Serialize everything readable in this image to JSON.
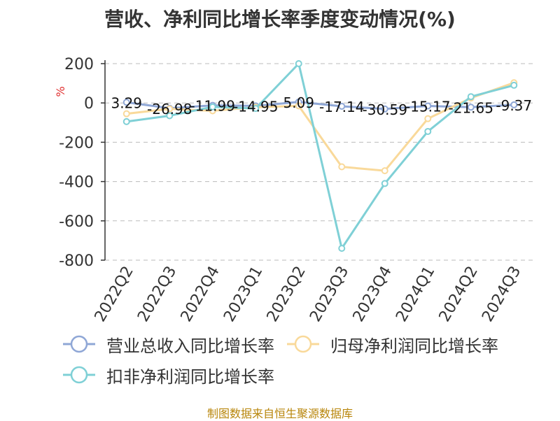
{
  "chart_data": {
    "type": "line",
    "title": "营收、净利同比增长率季度变动情况(%)",
    "ylabel": "%",
    "categories": [
      "2022Q2",
      "2022Q3",
      "2022Q4",
      "2023Q1",
      "2023Q2",
      "2023Q3",
      "2023Q4",
      "2024Q1",
      "2024Q2",
      "2024Q3"
    ],
    "ylim": [
      -800,
      200
    ],
    "yticks": [
      200,
      0,
      -200,
      -400,
      -600,
      -800
    ],
    "grid": true,
    "legend_position": "bottom",
    "series": [
      {
        "name": "营业总收入同比增长率",
        "color": "#8fa7d6",
        "values": [
          3.29,
          -26.98,
          -11.99,
          -14.95,
          5.09,
          -17.14,
          -30.59,
          -15.17,
          -21.65,
          -9.37
        ],
        "labels": [
          "3.29",
          "-26.98",
          "-11.99",
          "-14.95",
          "5.09",
          "-17.14",
          "-30.59",
          "-15.17",
          "-21.65",
          "-9.37"
        ]
      },
      {
        "name": "归母净利润同比增长率",
        "color": "#f9d99a",
        "values": [
          -55,
          -30,
          -40,
          -22,
          -15,
          -325,
          -345,
          -80,
          25,
          103
        ]
      },
      {
        "name": "扣非净利润同比增长率",
        "color": "#7fd0d6",
        "values": [
          -95,
          -65,
          -20,
          -28,
          200,
          -740,
          -410,
          -145,
          32,
          90
        ]
      }
    ]
  },
  "source_note": "制图数据来自恒生聚源数据库"
}
